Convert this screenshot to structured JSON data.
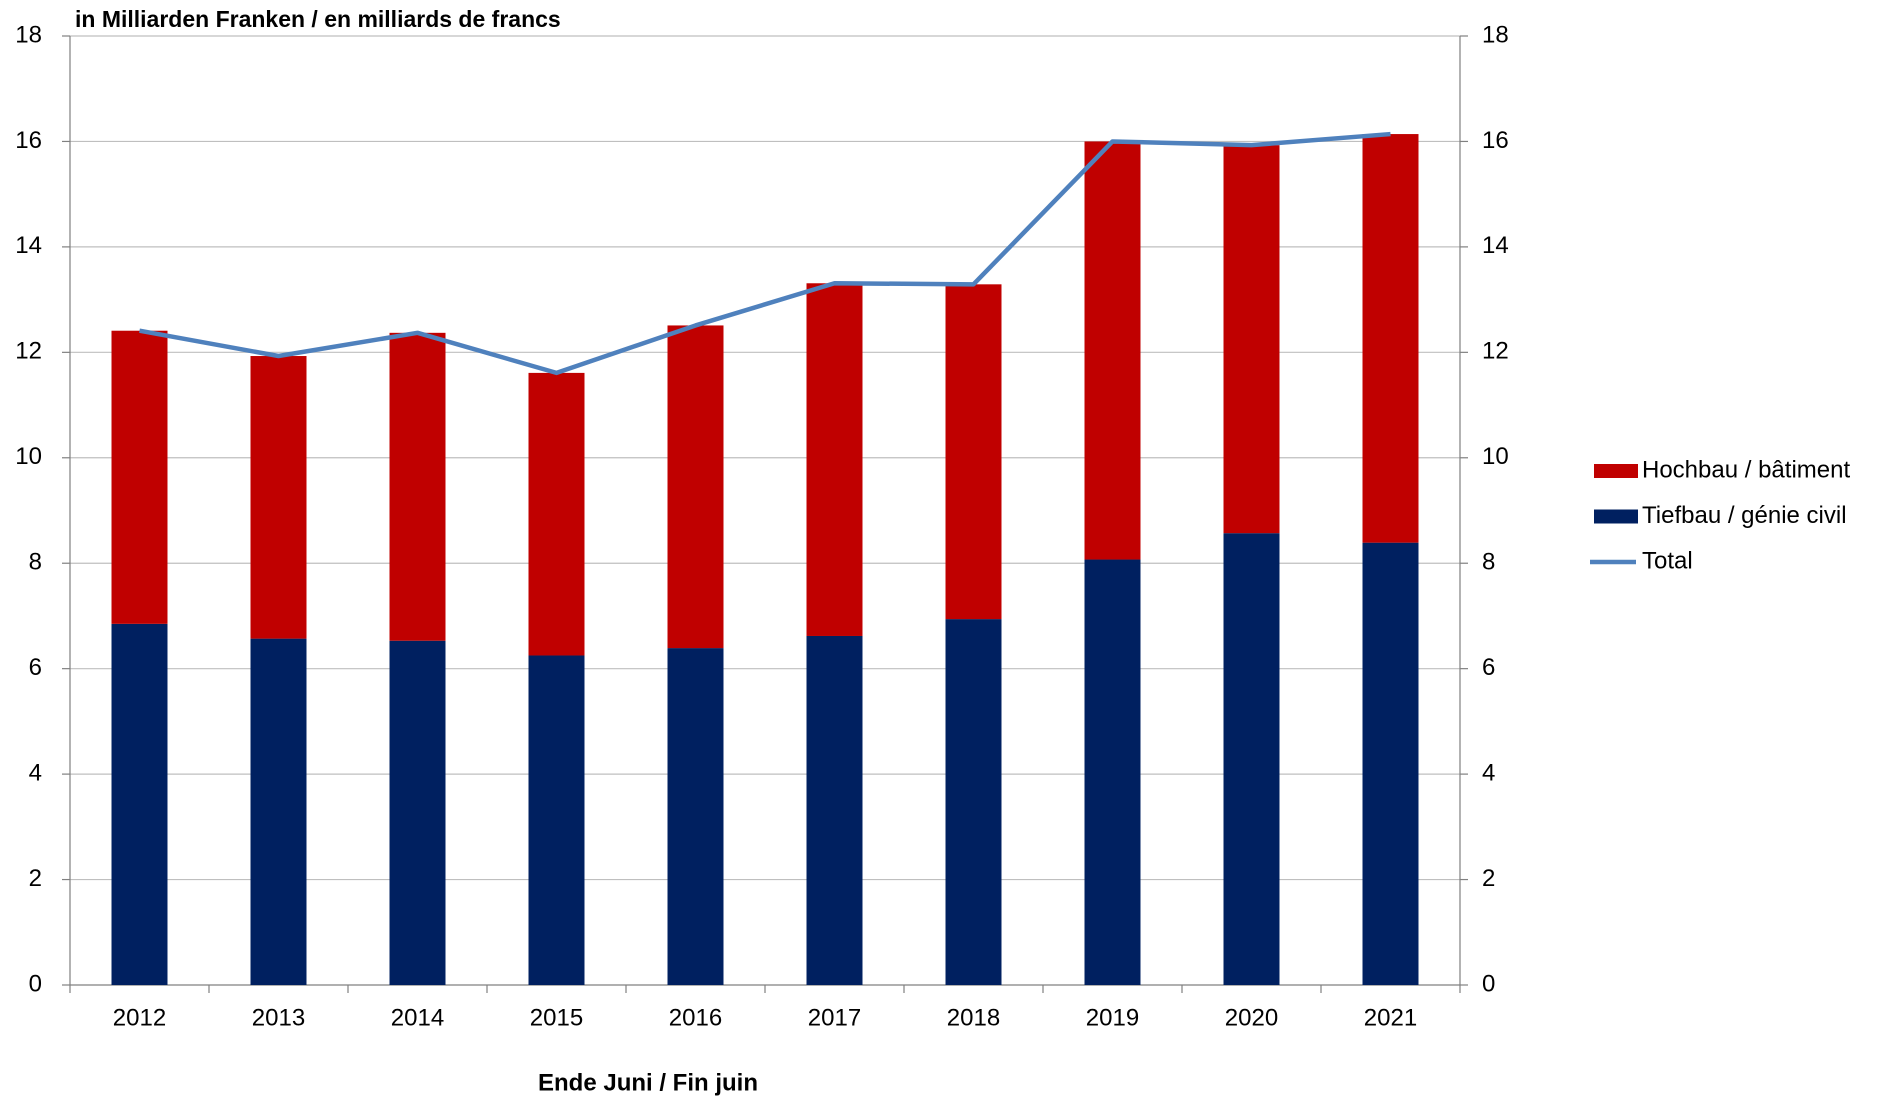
{
  "chart_data": {
    "type": "bar",
    "subtitle": "in Milliarden Franken / en milliards de francs",
    "x_label": "Ende Juni / Fin juin",
    "categories": [
      "2012",
      "2013",
      "2014",
      "2015",
      "2016",
      "2017",
      "2018",
      "2019",
      "2020",
      "2021"
    ],
    "stacked": true,
    "series": [
      {
        "name": "Hochbau / bâtiment",
        "color": "#c00000",
        "values": [
          5.56,
          5.36,
          5.84,
          5.36,
          6.12,
          6.69,
          6.35,
          7.93,
          7.36,
          7.75
        ]
      },
      {
        "name": "Tiefbau / génie civil",
        "color": "#002060",
        "values": [
          6.85,
          6.57,
          6.53,
          6.25,
          6.39,
          6.62,
          6.94,
          8.07,
          8.57,
          8.39
        ]
      },
      {
        "name": "Total",
        "color": "#4f81bd",
        "type": "line",
        "axis": "y2",
        "values": [
          12.41,
          11.93,
          12.37,
          11.61,
          12.51,
          13.31,
          13.29,
          16.0,
          15.93,
          16.14
        ]
      }
    ],
    "ylim": [
      0,
      18
    ],
    "yticks": [
      0,
      2,
      4,
      6,
      8,
      10,
      12,
      14,
      16,
      18
    ],
    "y2lim": [
      0,
      18
    ],
    "y2ticks": [
      0,
      2,
      4,
      6,
      8,
      10,
      12,
      14,
      16,
      18
    ],
    "grid": true,
    "legend": "right"
  }
}
